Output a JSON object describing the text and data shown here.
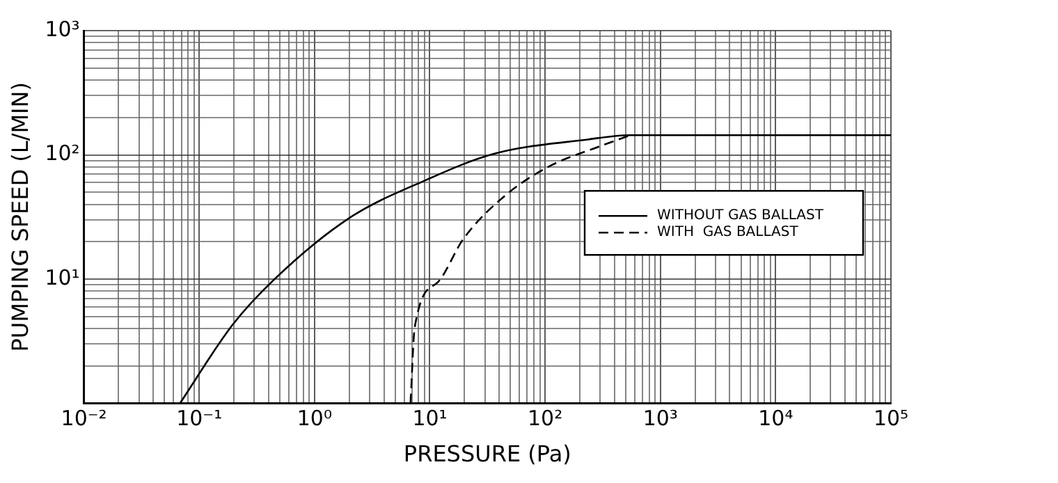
{
  "chart_data": {
    "type": "line",
    "xlabel": "PRESSURE (Pa)",
    "ylabel": "PUMPING SPEED (L/MIN)",
    "log": "xy",
    "grid": true,
    "legend": "right",
    "marker": "none",
    "xlim": [
      0.01,
      100000
    ],
    "ylim": [
      1,
      1000
    ],
    "xticks": [
      {
        "value": 0.01,
        "label": "10⁻²"
      },
      {
        "value": 0.1,
        "label": "10⁻¹"
      },
      {
        "value": 1,
        "label": "10⁰"
      },
      {
        "value": 10,
        "label": "10¹"
      },
      {
        "value": 100,
        "label": "10²"
      },
      {
        "value": 1000,
        "label": "10³"
      },
      {
        "value": 10000,
        "label": "10⁴"
      },
      {
        "value": 100000,
        "label": "10⁵"
      }
    ],
    "yticks": [
      {
        "value": 1,
        "label": null
      },
      {
        "value": 10,
        "label": "10¹"
      },
      {
        "value": 100,
        "label": "10²"
      },
      {
        "value": 1000,
        "label": "10³"
      }
    ],
    "series": [
      {
        "name": "WITHOUT GAS BALLAST",
        "color": "#000000",
        "line_style": "solid",
        "x": [
          0.068,
          0.195,
          0.45,
          2,
          9,
          36,
          234,
          550,
          100000
        ],
        "values": [
          1,
          4.3,
          10,
          31,
          62,
          102,
          133,
          144,
          144
        ]
      },
      {
        "name": "WITH  GAS BALLAST",
        "color": "#000000",
        "line_style": "dashed",
        "x": [
          6.8,
          7.4,
          11.8,
          19.5,
          45,
          112,
          282,
          550
        ],
        "values": [
          1,
          4.1,
          9.5,
          21,
          47,
          82,
          115,
          144
        ]
      }
    ]
  }
}
